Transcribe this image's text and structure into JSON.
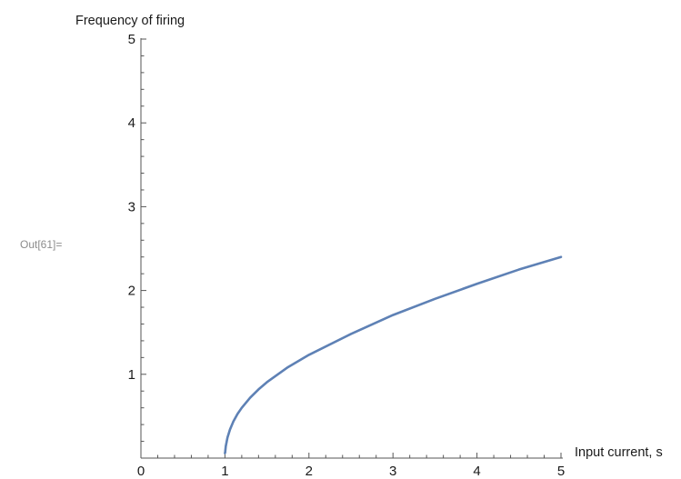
{
  "cell": {
    "label": "Out[61]="
  },
  "colors": {
    "series": "#5e81b5",
    "axis": "#555555",
    "text": "#1a1a1a",
    "cell_label": "#8c8c8c"
  },
  "chart_data": {
    "type": "line",
    "xlabel": "Input current, s",
    "ylabel": "Frequency of firing",
    "xlim": [
      0,
      5
    ],
    "ylim": [
      0,
      5
    ],
    "x_ticks": [
      "0",
      "1",
      "2",
      "3",
      "4",
      "5"
    ],
    "y_ticks": [
      "1",
      "2",
      "3",
      "4",
      "5"
    ],
    "grid": false,
    "series": [
      {
        "x": [
          1.0,
          1.002,
          1.01,
          1.03,
          1.06,
          1.1,
          1.15,
          1.2,
          1.3,
          1.4,
          1.5,
          1.75,
          2.0,
          2.5,
          3.0,
          3.5,
          4.0,
          4.5,
          5.0
        ],
        "y": [
          0.06,
          0.063,
          0.141,
          0.244,
          0.341,
          0.436,
          0.527,
          0.6,
          0.721,
          0.82,
          0.906,
          1.085,
          1.232,
          1.481,
          1.707,
          1.9,
          2.08,
          2.25,
          2.4
        ]
      }
    ]
  }
}
